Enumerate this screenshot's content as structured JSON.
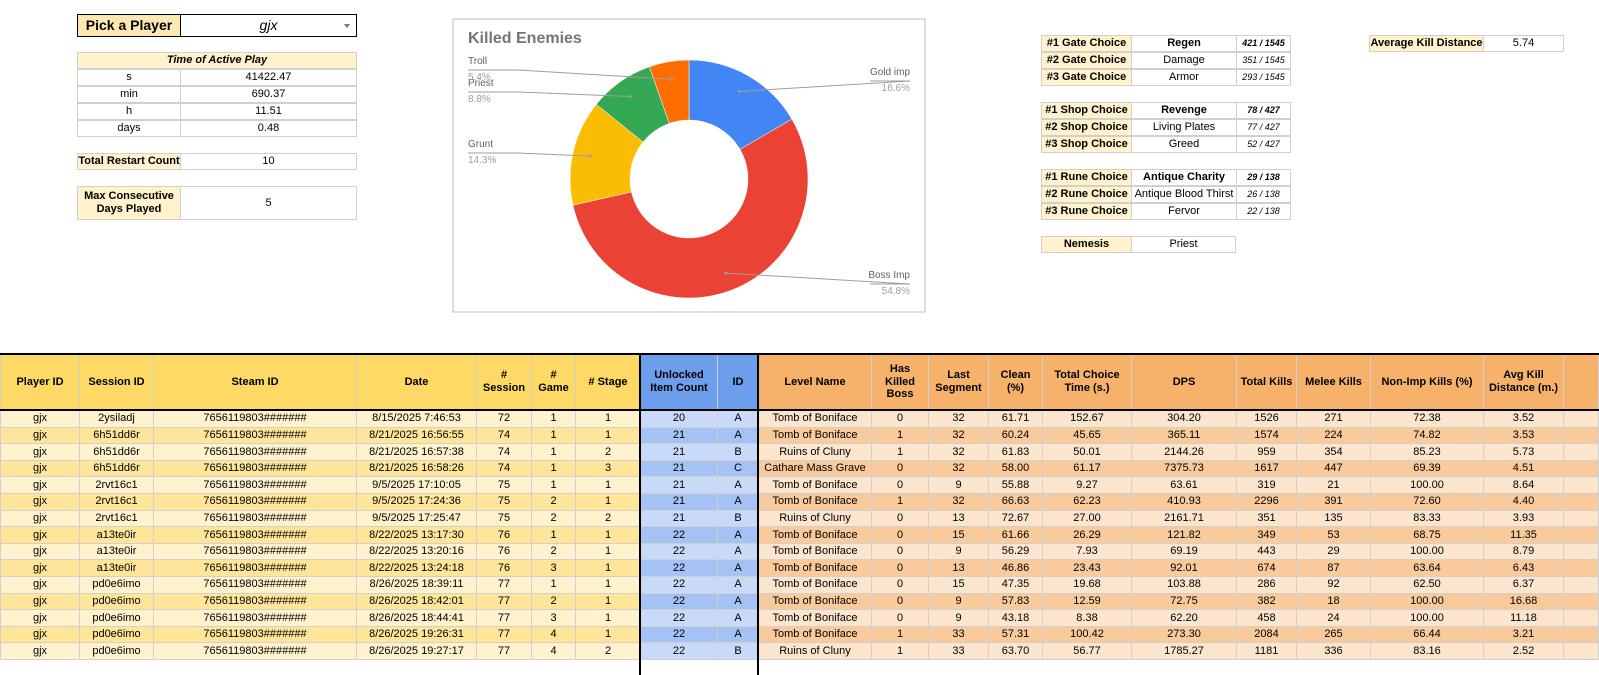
{
  "player_picker": {
    "label": "Pick a Player",
    "value": "gjx"
  },
  "active_play": {
    "title": "Time of Active Play",
    "rows": [
      [
        "s",
        "41422.47"
      ],
      [
        "min",
        "690.37"
      ],
      [
        "h",
        "11.51"
      ],
      [
        "days",
        "0.48"
      ]
    ]
  },
  "restart": {
    "label": "Total Restart Count",
    "value": "10"
  },
  "max_days": {
    "label": "Max Consecutive Days Played",
    "value": "5"
  },
  "chart_data": {
    "type": "pie",
    "donut": true,
    "title": "Killed Enemies",
    "categories": [
      "Gold imp",
      "Boss Imp",
      "Grunt",
      "Priest",
      "Troll"
    ],
    "values": [
      16.6,
      54.8,
      14.3,
      8.8,
      5.4
    ],
    "value_labels": [
      "16.6%",
      "54.8%",
      "14.3%",
      "8.8%",
      "5.4%"
    ],
    "colors": [
      "#4285f4",
      "#ea4335",
      "#fbbc04",
      "#34a853",
      "#ff6d01"
    ]
  },
  "gate_choices": [
    [
      "#1 Gate Choice",
      "Regen",
      "421 / 1545"
    ],
    [
      "#2 Gate Choice",
      "Damage",
      "351 / 1545"
    ],
    [
      "#3 Gate Choice",
      "Armor",
      "293 / 1545"
    ]
  ],
  "shop_choices": [
    [
      "#1 Shop Choice",
      "Revenge",
      "78 / 427"
    ],
    [
      "#2 Shop Choice",
      "Living Plates",
      "77 / 427"
    ],
    [
      "#3 Shop Choice",
      "Greed",
      "52 / 427"
    ]
  ],
  "rune_choices": [
    [
      "#1 Rune Choice",
      "Antique Charity",
      "29 / 138"
    ],
    [
      "#2 Rune Choice",
      "Antique Blood Thirst",
      "26 / 138"
    ],
    [
      "#3 Rune Choice",
      "Fervor",
      "22 / 138"
    ]
  ],
  "nemesis": {
    "label": "Nemesis",
    "value": "Priest"
  },
  "avg_kill_distance": {
    "label": "Average Kill Distance",
    "value": "5.74"
  },
  "table": {
    "headers": [
      "Player ID",
      "Session ID",
      "Steam ID",
      "Date",
      "# Session",
      "# Game",
      "# Stage",
      "Unlocked Item Count",
      "ID",
      "Level Name",
      "Has Killed Boss",
      "Last Segment",
      "Clean (%)",
      "Total Choice Time (s.)",
      "DPS",
      "Total Kills",
      "Melee Kills",
      "Non-Imp Kills (%)",
      "Avg Kill Distance (m.)"
    ],
    "rows": [
      [
        "gjx",
        "2ysiladj",
        "7656119803#######",
        "8/15/2025 7:46:53",
        "72",
        "1",
        "1",
        "20",
        "A",
        "Tomb of Boniface",
        "0",
        "32",
        "61.71",
        "152.67",
        "304.20",
        "1526",
        "271",
        "72.38",
        "3.52"
      ],
      [
        "gjx",
        "6h51dd6r",
        "7656119803#######",
        "8/21/2025 16:56:55",
        "74",
        "1",
        "1",
        "21",
        "A",
        "Tomb of Boniface",
        "1",
        "32",
        "60.24",
        "45.65",
        "365.11",
        "1574",
        "224",
        "74.82",
        "3.53"
      ],
      [
        "gjx",
        "6h51dd6r",
        "7656119803#######",
        "8/21/2025 16:57:38",
        "74",
        "1",
        "2",
        "21",
        "B",
        "Ruins of Cluny",
        "1",
        "32",
        "61.83",
        "50.01",
        "2144.26",
        "959",
        "354",
        "85.23",
        "5.73"
      ],
      [
        "gjx",
        "6h51dd6r",
        "7656119803#######",
        "8/21/2025 16:58:26",
        "74",
        "1",
        "3",
        "21",
        "C",
        "Cathare Mass Grave",
        "0",
        "32",
        "58.00",
        "61.17",
        "7375.73",
        "1617",
        "447",
        "69.39",
        "4.51"
      ],
      [
        "gjx",
        "2rvt16c1",
        "7656119803#######",
        "9/5/2025 17:10:05",
        "75",
        "1",
        "1",
        "21",
        "A",
        "Tomb of Boniface",
        "0",
        "9",
        "55.88",
        "9.27",
        "63.61",
        "319",
        "21",
        "100.00",
        "8.64"
      ],
      [
        "gjx",
        "2rvt16c1",
        "7656119803#######",
        "9/5/2025 17:24:36",
        "75",
        "2",
        "1",
        "21",
        "A",
        "Tomb of Boniface",
        "1",
        "32",
        "66.63",
        "62.23",
        "410.93",
        "2296",
        "391",
        "72.60",
        "4.40"
      ],
      [
        "gjx",
        "2rvt16c1",
        "7656119803#######",
        "9/5/2025 17:25:47",
        "75",
        "2",
        "2",
        "21",
        "B",
        "Ruins of Cluny",
        "0",
        "13",
        "72.67",
        "27.00",
        "2161.71",
        "351",
        "135",
        "83.33",
        "3.93"
      ],
      [
        "gjx",
        "a13te0ir",
        "7656119803#######",
        "8/22/2025 13:17:30",
        "76",
        "1",
        "1",
        "22",
        "A",
        "Tomb of Boniface",
        "0",
        "15",
        "61.66",
        "26.29",
        "121.82",
        "349",
        "53",
        "68.75",
        "11.35"
      ],
      [
        "gjx",
        "a13te0ir",
        "7656119803#######",
        "8/22/2025 13:20:16",
        "76",
        "2",
        "1",
        "22",
        "A",
        "Tomb of Boniface",
        "0",
        "9",
        "56.29",
        "7.93",
        "69.19",
        "443",
        "29",
        "100.00",
        "8.79"
      ],
      [
        "gjx",
        "a13te0ir",
        "7656119803#######",
        "8/22/2025 13:24:18",
        "76",
        "3",
        "1",
        "22",
        "A",
        "Tomb of Boniface",
        "0",
        "13",
        "46.86",
        "23.43",
        "92.01",
        "674",
        "87",
        "63.64",
        "6.43"
      ],
      [
        "gjx",
        "pd0e6imo",
        "7656119803#######",
        "8/26/2025 18:39:11",
        "77",
        "1",
        "1",
        "22",
        "A",
        "Tomb of Boniface",
        "0",
        "15",
        "47.35",
        "19.68",
        "103.88",
        "286",
        "92",
        "62.50",
        "6.37"
      ],
      [
        "gjx",
        "pd0e6imo",
        "7656119803#######",
        "8/26/2025 18:42:01",
        "77",
        "2",
        "1",
        "22",
        "A",
        "Tomb of Boniface",
        "0",
        "9",
        "57.83",
        "12.59",
        "72.75",
        "382",
        "18",
        "100.00",
        "16.68"
      ],
      [
        "gjx",
        "pd0e6imo",
        "7656119803#######",
        "8/26/2025 18:44:41",
        "77",
        "3",
        "1",
        "22",
        "A",
        "Tomb of Boniface",
        "0",
        "9",
        "43.18",
        "8.38",
        "62.20",
        "458",
        "24",
        "100.00",
        "11.18"
      ],
      [
        "gjx",
        "pd0e6imo",
        "7656119803#######",
        "8/26/2025 19:26:31",
        "77",
        "4",
        "1",
        "22",
        "A",
        "Tomb of Boniface",
        "1",
        "33",
        "57.31",
        "100.42",
        "273.30",
        "2084",
        "265",
        "66.44",
        "3.21"
      ],
      [
        "gjx",
        "pd0e6imo",
        "7656119803#######",
        "8/26/2025 19:27:17",
        "77",
        "4",
        "2",
        "22",
        "B",
        "Ruins of Cluny",
        "1",
        "33",
        "63.70",
        "56.77",
        "1785.27",
        "1181",
        "336",
        "83.16",
        "2.52"
      ]
    ]
  }
}
